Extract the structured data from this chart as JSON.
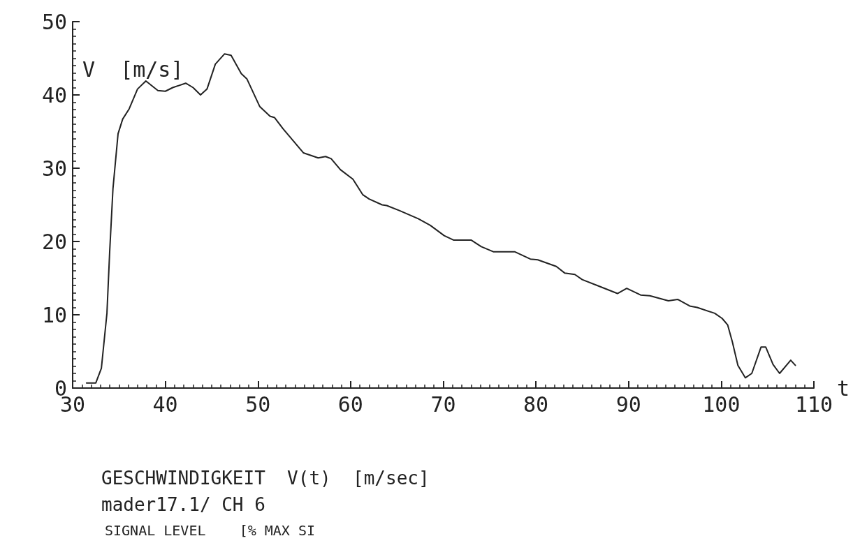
{
  "chart_data": {
    "type": "line",
    "title": "GESCHWINDIGKEIT  V(t)  [m/sec]",
    "subtitle": "mader17.1/ CH 6",
    "annotations": [
      "SIGNAL LEVEL    [% MAX SI"
    ],
    "ylabel": "V  [m/s]",
    "xlabel": "t",
    "x": [
      31.5,
      32.5,
      33.1,
      33.7,
      34.0,
      34.35,
      34.9,
      35.4,
      36.1,
      37.0,
      37.9,
      39.2,
      40.0,
      40.8,
      42.2,
      43.0,
      43.8,
      44.5,
      45.4,
      46.4,
      47.1,
      48.2,
      48.8,
      50.2,
      51.3,
      51.8,
      52.7,
      54.9,
      56.5,
      57.3,
      57.9,
      58.9,
      60.25,
      61.3,
      62.0,
      63.4,
      63.9,
      65.3,
      67.3,
      68.6,
      70.1,
      71.1,
      73.0,
      74.1,
      75.4,
      77.7,
      79.4,
      80.2,
      82.2,
      83.1,
      84.2,
      85.0,
      86.8,
      88.8,
      89.8,
      91.3,
      92.3,
      94.3,
      95.3,
      96.6,
      97.4,
      99.3,
      100.1,
      100.7,
      101.2,
      101.8,
      102.6,
      103.3,
      104.3,
      104.8,
      105.6,
      106.3,
      107.5,
      108.0
    ],
    "series": [
      {
        "color": "#222222",
        "values": [
          0.7,
          0.7,
          2.7,
          10.2,
          18.7,
          27.2,
          34.7,
          36.7,
          38.1,
          40.8,
          41.9,
          40.6,
          40.5,
          41.0,
          41.6,
          41.0,
          40.0,
          40.8,
          44.2,
          45.6,
          45.4,
          42.9,
          42.2,
          38.4,
          37.1,
          36.9,
          35.4,
          32.1,
          31.4,
          31.6,
          31.3,
          29.8,
          28.5,
          26.4,
          25.8,
          25.0,
          24.9,
          24.2,
          23.1,
          22.2,
          20.8,
          20.2,
          20.2,
          19.3,
          18.6,
          18.6,
          17.6,
          17.5,
          16.6,
          15.7,
          15.5,
          14.8,
          13.9,
          12.9,
          13.6,
          12.7,
          12.6,
          11.9,
          12.1,
          11.2,
          11.0,
          10.2,
          9.5,
          8.6,
          6.3,
          3.1,
          1.4,
          2.0,
          5.6,
          5.6,
          3.2,
          2.0,
          3.8,
          3.1
        ]
      }
    ],
    "xlim": [
      30,
      110
    ],
    "xticks": [
      30,
      40,
      50,
      60,
      70,
      80,
      90,
      100,
      110
    ],
    "ylim": [
      0,
      50
    ],
    "yticks": [
      0,
      10,
      20,
      30,
      40,
      50
    ],
    "marker": "none",
    "line_style": "solid"
  }
}
